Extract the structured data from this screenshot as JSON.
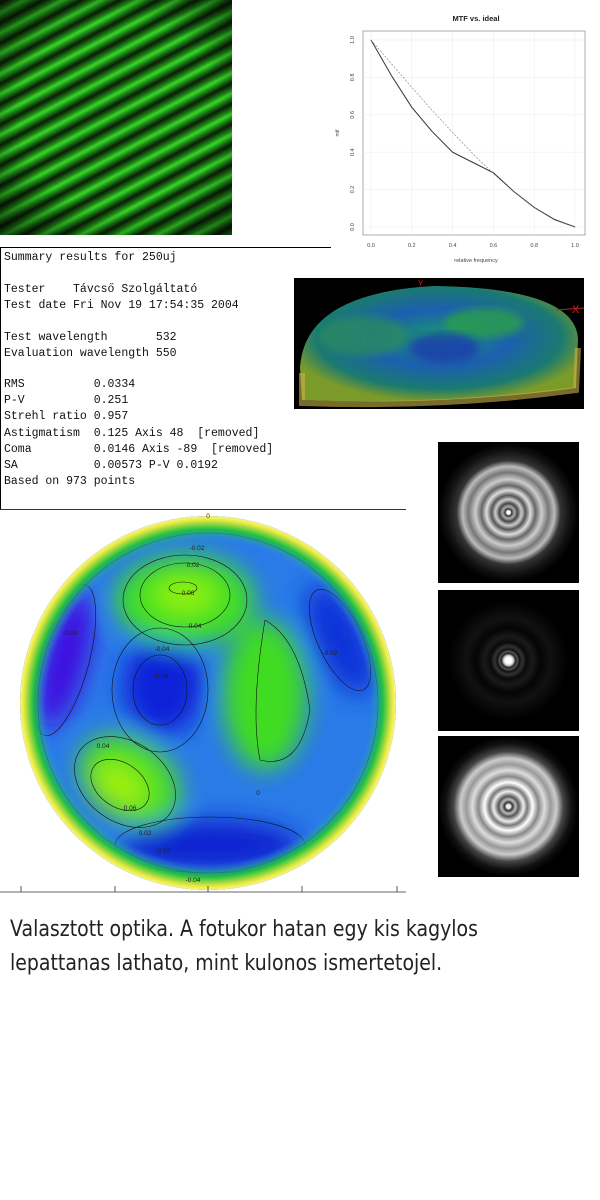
{
  "interferogram": {
    "colors": {
      "fringe": "#3cdc2a",
      "background": "#050805"
    }
  },
  "chart_data": {
    "type": "line",
    "title": "MTF vs. ideal",
    "xlabel": "relative frequency",
    "ylabel": "mtf",
    "xlim": [
      0,
      1
    ],
    "ylim": [
      0,
      1
    ],
    "x_ticks": [
      "0.0",
      "0.2",
      "0.4",
      "0.6",
      "0.8",
      "1.0"
    ],
    "y_ticks": [
      "0.0",
      "0.2",
      "0.4",
      "0.6",
      "0.8",
      "1.0"
    ],
    "grid": true,
    "x": [
      0,
      0.1,
      0.2,
      0.3,
      0.4,
      0.5,
      0.6,
      0.7,
      0.8,
      0.9,
      1.0
    ],
    "series": [
      {
        "style": "solid",
        "values": [
          1.0,
          0.81,
          0.64,
          0.51,
          0.4,
          0.345,
          0.29,
          0.19,
          0.105,
          0.04,
          0.0
        ]
      },
      {
        "style": "dashed",
        "values": [
          1.0,
          0.873,
          0.747,
          0.624,
          0.505,
          0.391,
          0.285,
          0.188,
          0.104,
          0.037,
          0.0
        ]
      }
    ]
  },
  "summary": {
    "title": "Summary results for 250uj",
    "tester": "Tester    Távcső Szolgáltató",
    "test_date": "Test date Fri Nov 19 17:54:35 2004",
    "test_wavelength": "Test wavelength       532",
    "evaluation_wavelength": "Evaluation wavelength 550",
    "rms": "RMS          0.0334",
    "pv": "P-V          0.251",
    "strehl": "Strehl ratio 0.957",
    "astigmatism": "Astigmatism  0.125 Axis 48  [removed]",
    "coma": "Coma         0.0146 Axis -89  [removed]",
    "sa": "SA           0.00573 P-V 0.0192",
    "points": "Based on 973 points"
  },
  "surface3d": {
    "axis_labels": {
      "y": "Y",
      "x": "X"
    }
  },
  "contour_labels": [
    "0",
    "-0.02",
    "0.02",
    "0.06",
    "0.04",
    "-0.04",
    "-0.04",
    "-0.02",
    "-0.04",
    "0.04",
    "0.06",
    "0.02",
    "0",
    "-0.02",
    "-0.04"
  ],
  "caption": {
    "line1": "Valasztott optika. A fotukor hatan egy kis kagylos",
    "line2": "lepattanas lathato, mint kulonos ismertetojel."
  }
}
